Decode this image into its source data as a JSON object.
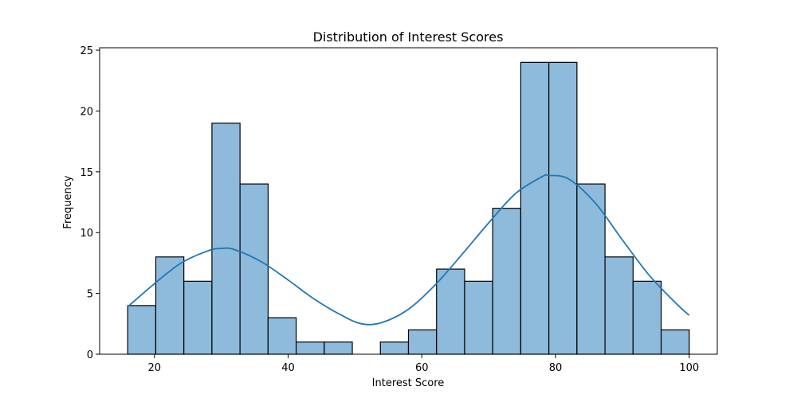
{
  "chart_data": {
    "type": "bar",
    "subtype": "histogram-with-kde",
    "title": "Distribution of Interest Scores",
    "xlabel": "Interest Score",
    "ylabel": "Frequency",
    "xlim": [
      11.8,
      104.2
    ],
    "ylim": [
      0,
      25.2
    ],
    "xticks": [
      20,
      40,
      60,
      80,
      100
    ],
    "yticks": [
      0,
      5,
      10,
      15,
      20,
      25
    ],
    "grid": false,
    "bar_color": "#8ebadb",
    "bar_edge_color": "#000000",
    "kde_color": "#1f77b4",
    "bins": [
      {
        "x0": 16.0,
        "x1": 20.2,
        "count": 4
      },
      {
        "x0": 20.2,
        "x1": 24.4,
        "count": 8
      },
      {
        "x0": 24.4,
        "x1": 28.6,
        "count": 6
      },
      {
        "x0": 28.6,
        "x1": 32.8,
        "count": 19
      },
      {
        "x0": 32.8,
        "x1": 37.0,
        "count": 14
      },
      {
        "x0": 37.0,
        "x1": 41.2,
        "count": 3
      },
      {
        "x0": 41.2,
        "x1": 45.4,
        "count": 1
      },
      {
        "x0": 45.4,
        "x1": 49.6,
        "count": 1
      },
      {
        "x0": 49.6,
        "x1": 53.8,
        "count": 0
      },
      {
        "x0": 53.8,
        "x1": 58.0,
        "count": 1
      },
      {
        "x0": 58.0,
        "x1": 62.2,
        "count": 2
      },
      {
        "x0": 62.2,
        "x1": 66.4,
        "count": 7
      },
      {
        "x0": 66.4,
        "x1": 70.6,
        "count": 6
      },
      {
        "x0": 70.6,
        "x1": 74.8,
        "count": 12
      },
      {
        "x0": 74.8,
        "x1": 79.0,
        "count": 24
      },
      {
        "x0": 79.0,
        "x1": 83.2,
        "count": 24
      },
      {
        "x0": 83.2,
        "x1": 87.4,
        "count": 14
      },
      {
        "x0": 87.4,
        "x1": 91.6,
        "count": 8
      },
      {
        "x0": 91.6,
        "x1": 95.8,
        "count": 6
      },
      {
        "x0": 95.8,
        "x1": 100.0,
        "count": 2
      }
    ],
    "kde": {
      "x": [
        16,
        20,
        24,
        28,
        30,
        32,
        36,
        40,
        44,
        48,
        51,
        54,
        58,
        62,
        66,
        70,
        74,
        78,
        79,
        82,
        86,
        90,
        94,
        98,
        100
      ],
      "y": [
        3.9,
        5.8,
        7.5,
        8.5,
        8.7,
        8.6,
        7.6,
        6.1,
        4.5,
        3.2,
        2.5,
        2.6,
        3.7,
        5.7,
        8.2,
        10.8,
        13.2,
        14.6,
        14.7,
        14.4,
        12.4,
        9.4,
        6.5,
        4.2,
        3.2
      ]
    }
  }
}
